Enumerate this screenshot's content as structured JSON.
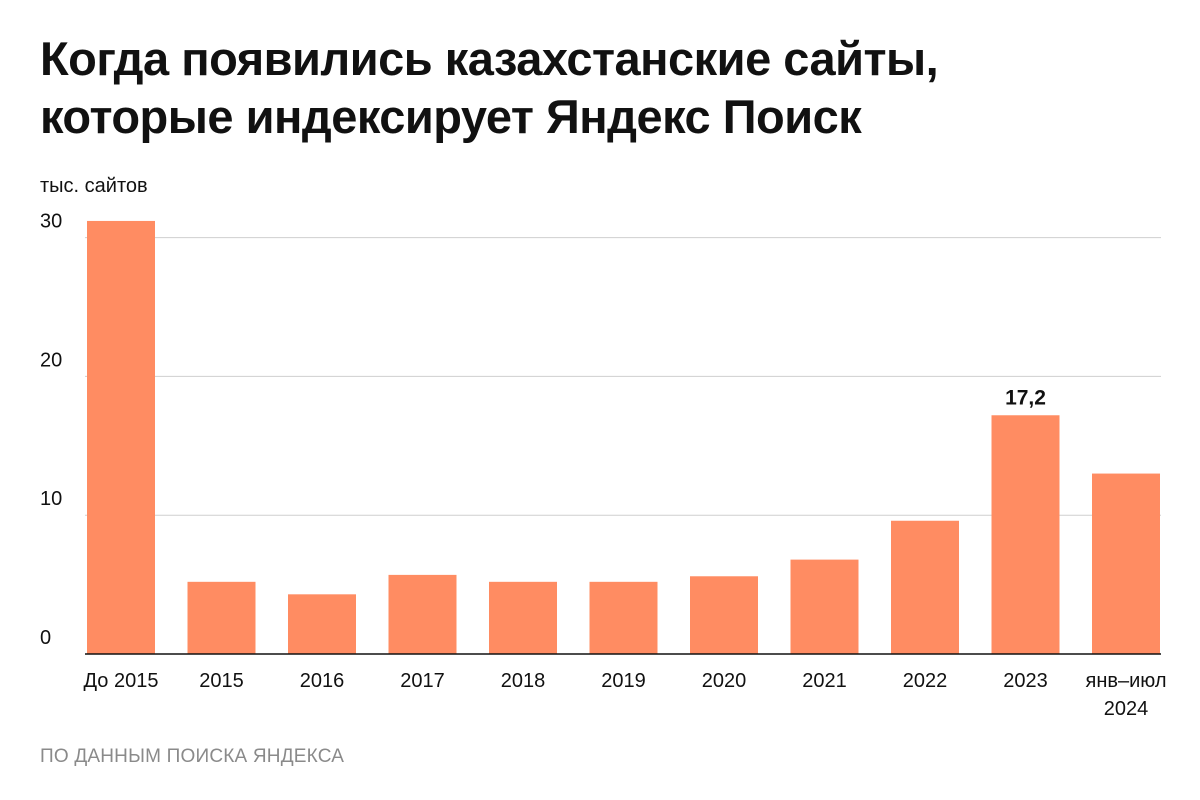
{
  "title_lines": [
    "Когда появились казахстанские сайты,",
    "которые индексирует Яндекс Поиск"
  ],
  "unit_label": "тыс. сайтов",
  "source": "ПО ДАННЫМ ПОИСКА ЯНДЕКСА",
  "colors": {
    "bar": "#ff8c62",
    "grid": "#cfcfcf",
    "axis": "#111111"
  },
  "chart_data": {
    "type": "bar",
    "title": "Когда появились казахстанские сайты, которые индексирует Яндекс Поиск",
    "ylabel": "тыс. сайтов",
    "xlabel": "",
    "categories": [
      [
        "До 2015"
      ],
      [
        "2015"
      ],
      [
        "2016"
      ],
      [
        "2017"
      ],
      [
        "2018"
      ],
      [
        "2019"
      ],
      [
        "2020"
      ],
      [
        "2021"
      ],
      [
        "2022"
      ],
      [
        "2023"
      ],
      [
        "янв–июл",
        "2024"
      ]
    ],
    "values": [
      31.2,
      5.2,
      4.3,
      5.7,
      5.2,
      5.2,
      5.6,
      6.8,
      9.6,
      17.2,
      13.0
    ],
    "data_labels": [
      null,
      null,
      null,
      null,
      null,
      null,
      null,
      null,
      null,
      "17,2",
      null
    ],
    "yticks": [
      0,
      10,
      20,
      30
    ],
    "ylim": [
      0,
      30
    ],
    "grid": true
  }
}
